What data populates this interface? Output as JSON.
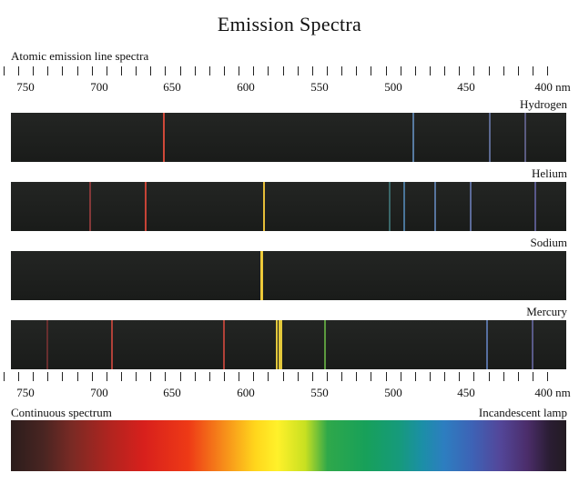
{
  "title": "Emission Spectra",
  "top_label": "Atomic emission line spectra",
  "bottom_left_label": "Continuous spectrum",
  "bottom_right_label": "Incandescent lamp",
  "scale": {
    "unit": "nm",
    "min_nm": 390,
    "max_nm": 765,
    "major_every_nm": 50,
    "minor_every_nm": 10,
    "tick_labels": [
      "750",
      "700",
      "650",
      "600",
      "550",
      "500",
      "450",
      "400 nm"
    ]
  },
  "spectra": [
    {
      "name": "Hydrogen",
      "lines": [
        {
          "nm": 656,
          "color": "#d84b3a"
        },
        {
          "nm": 486,
          "color": "#5b7fa8"
        },
        {
          "nm": 434,
          "color": "#5f6d96"
        },
        {
          "nm": 410,
          "color": "#5e5f86"
        }
      ]
    },
    {
      "name": "Helium",
      "lines": [
        {
          "nm": 706,
          "color": "#8a3a3a"
        },
        {
          "nm": 668,
          "color": "#d04638"
        },
        {
          "nm": 588,
          "color": "#f0c63a"
        },
        {
          "nm": 502,
          "color": "#3c6b6e"
        },
        {
          "nm": 492,
          "color": "#4d7aa0"
        },
        {
          "nm": 471,
          "color": "#5b79a4"
        },
        {
          "nm": 447,
          "color": "#6070a0"
        },
        {
          "nm": 403,
          "color": "#5c5c90"
        }
      ]
    },
    {
      "name": "Sodium",
      "lines": [
        {
          "nm": 589.6,
          "color": "#f3cf3a"
        },
        {
          "nm": 589.0,
          "color": "#f3cf3a"
        }
      ]
    },
    {
      "name": "Mercury",
      "lines": [
        {
          "nm": 735,
          "color": "#6b2f2f"
        },
        {
          "nm": 691,
          "color": "#b8433a"
        },
        {
          "nm": 615,
          "color": "#b8433a"
        },
        {
          "nm": 579,
          "color": "#eed23c"
        },
        {
          "nm": 577,
          "color": "#eed23c"
        },
        {
          "nm": 576,
          "color": "#eed23c"
        },
        {
          "nm": 546,
          "color": "#5fa040"
        },
        {
          "nm": 436,
          "color": "#5a74a8"
        },
        {
          "nm": 405,
          "color": "#5d5e8e"
        }
      ]
    }
  ]
}
